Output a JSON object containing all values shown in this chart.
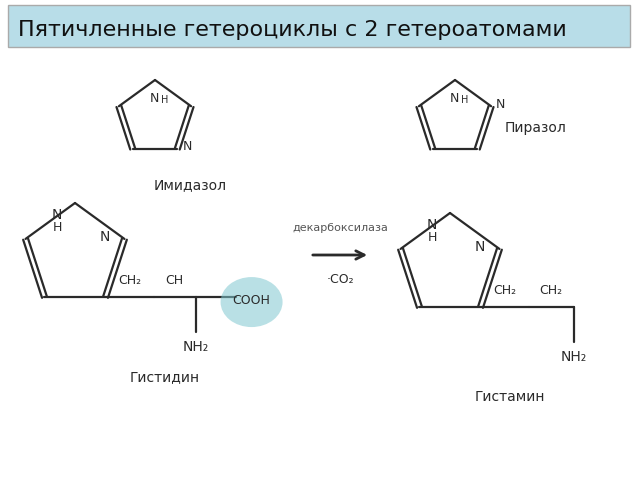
{
  "title": "Пятичленные гетероциклы с 2 гетероатомами",
  "title_bg": "#b8dde8",
  "title_fontsize": 16,
  "label_imidazol": "Имидазол",
  "label_pirazol": "Пиразол",
  "label_gistidin": "Гистидин",
  "label_gistamin": "Гистамин",
  "label_dekarboksilaza": "декарбоксилаза",
  "label_co2": "·CO₂",
  "background_color": "#ffffff",
  "line_color": "#2a2a2a",
  "ellipse_color": "#80c8d0",
  "ellipse_alpha": 0.55
}
